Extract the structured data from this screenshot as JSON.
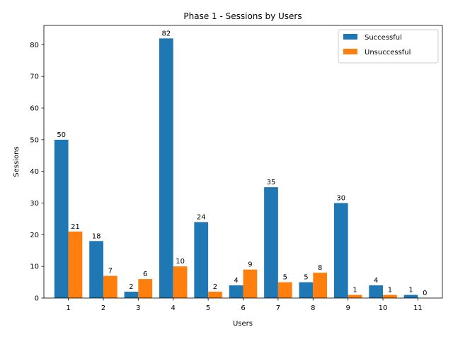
{
  "chart_data": {
    "type": "bar",
    "title": "Phase 1 - Sessions by Users",
    "xlabel": "Users",
    "ylabel": "Sessions",
    "categories": [
      "1",
      "2",
      "3",
      "4",
      "5",
      "6",
      "7",
      "8",
      "9",
      "10",
      "11"
    ],
    "series": [
      {
        "name": "Successful",
        "color": "#1f77b4",
        "values": [
          50,
          18,
          2,
          82,
          24,
          4,
          35,
          5,
          30,
          4,
          1
        ]
      },
      {
        "name": "Unsuccessful",
        "color": "#ff7f0e",
        "values": [
          21,
          7,
          6,
          10,
          2,
          9,
          5,
          8,
          1,
          1,
          0
        ]
      }
    ],
    "ylim": [
      0,
      86.1
    ],
    "yticks": [
      0,
      10,
      20,
      30,
      40,
      50,
      60,
      70,
      80
    ],
    "grid": false,
    "legend_position": "top-right",
    "data_labels": true
  }
}
